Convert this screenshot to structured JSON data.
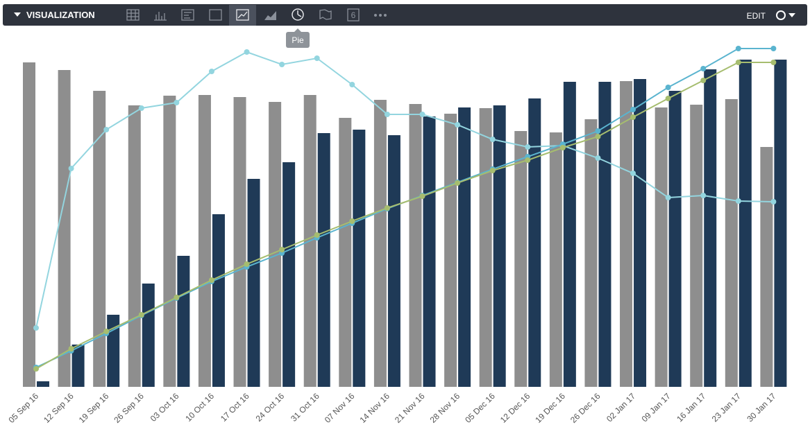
{
  "toolbar": {
    "title": "VISUALIZATION",
    "edit": "EDIT",
    "single_value_icon": "6",
    "tooltip": "Pie"
  },
  "chart_data": {
    "type": "bar-line",
    "categories": [
      "05 Sep 16",
      "12 Sep 16",
      "19 Sep 16",
      "26 Sep 16",
      "03 Oct 16",
      "10 Oct 16",
      "17 Oct 16",
      "24 Oct 16",
      "31 Oct 16",
      "07 Nov 16",
      "14 Nov 16",
      "21 Nov 16",
      "28 Nov 16",
      "05 Dec 16",
      "12 Dec 16",
      "19 Dec 16",
      "26 Dec 16",
      "02 Jan 17",
      "09 Jan 17",
      "16 Jan 17",
      "23 Jan 17",
      "30 Jan 17"
    ],
    "ylim": [
      0,
      500
    ],
    "series": [
      {
        "type": "bar",
        "color": "#8e8e8e",
        "values": [
          468,
          457,
          427,
          406,
          420,
          421,
          418,
          411,
          421,
          388,
          414,
          408,
          394,
          402,
          369,
          367,
          386,
          441,
          403,
          407,
          415,
          346
        ]
      },
      {
        "type": "bar",
        "color": "#1f3a57",
        "values": [
          8,
          61,
          104,
          149,
          189,
          249,
          300,
          324,
          366,
          371,
          363,
          390,
          403,
          406,
          416,
          440,
          440,
          444,
          427,
          458,
          472,
          472
        ]
      },
      {
        "type": "line",
        "color": "#93d5df",
        "values": [
          85,
          315,
          371,
          402,
          410,
          455,
          483,
          465,
          474,
          436,
          393,
          393,
          378,
          357,
          346,
          348,
          330,
          308,
          273,
          276,
          268,
          267
        ]
      },
      {
        "type": "line",
        "color": "#5ab4cf",
        "values": [
          28,
          52,
          77,
          103,
          128,
          152,
          173,
          193,
          215,
          236,
          257,
          276,
          295,
          314,
          332,
          350,
          369,
          400,
          432,
          459,
          488,
          488
        ]
      },
      {
        "type": "line",
        "color": "#a6bd6f",
        "values": [
          26,
          55,
          80,
          104,
          129,
          154,
          177,
          198,
          219,
          239,
          258,
          275,
          294,
          312,
          327,
          345,
          361,
          389,
          416,
          442,
          468,
          468
        ]
      }
    ]
  }
}
